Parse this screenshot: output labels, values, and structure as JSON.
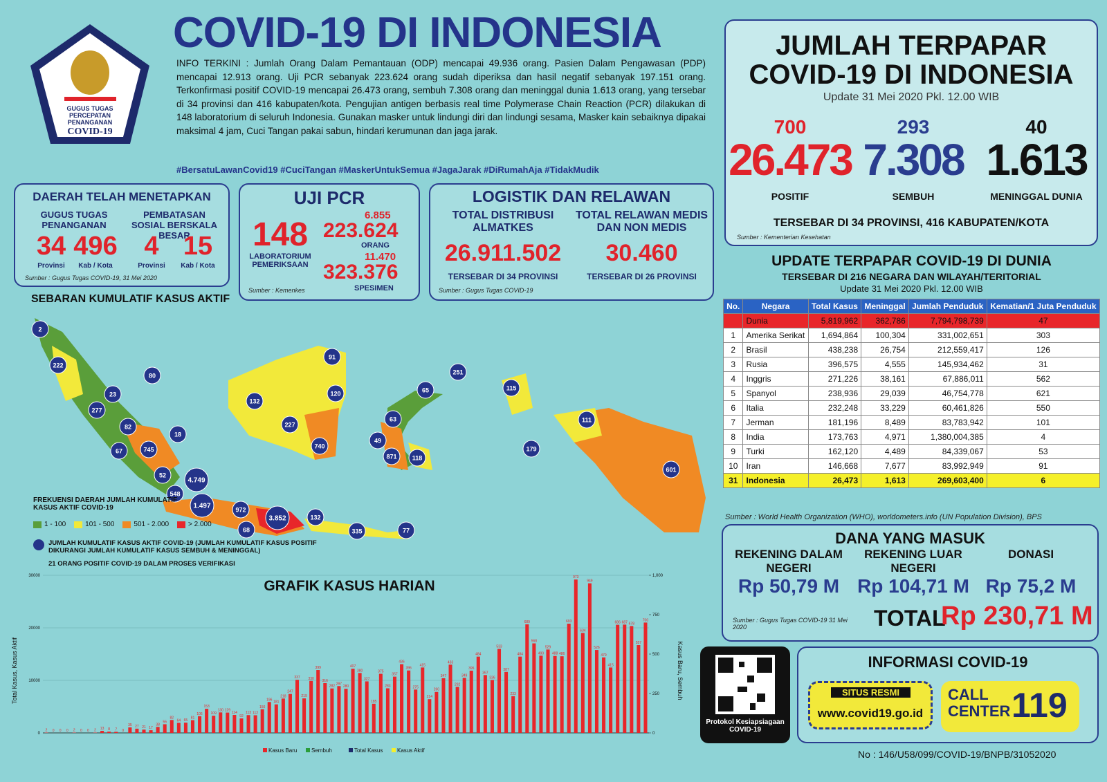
{
  "header": {
    "title": "COVID-19 DI INDONESIA",
    "logo_text": [
      "GUGUS TUGAS",
      "PERCEPATAN",
      "PENANGANAN",
      "COVID-19"
    ],
    "info": "INFO TERKINI : Jumlah Orang Dalam Pemantauan (ODP) mencapai 49.936 orang. Pasien Dalam Pengawasan (PDP) mencapai 12.913 orang. Uji PCR sebanyak 223.624 orang sudah diperiksa dan hasil negatif sebanyak 197.151 orang. Terkonfirmasi positif COVID-19 mencapai 26.473 orang, sembuh 7.308 orang dan meninggal dunia 1.613 orang, yang tersebar di 34 provinsi dan 416 kabupaten/kota. Pengujian antigen berbasis real time Polymerase Chain Reaction (PCR) dilakukan di 148 laboratorium di seluruh Indonesia. Gunakan masker untuk lindungi diri dan lindungi sesama, Masker kain sebaiknya dipakai maksimal 4 jam, Cuci Tangan pakai sabun, hindari kerumunan dan jaga jarak.",
    "hashtags": "#BersatuLawanCovid19 #CuciTangan #MaskerUntukSemua #JagaJarak #DiRumahAja #TidakMudik"
  },
  "daerah": {
    "title": "DAERAH TELAH MENETAPKAN",
    "group1": "GUGUS TUGAS PENANGANAN",
    "group2": "PEMBATASAN SOSIAL BERSKALA BESAR",
    "items": [
      {
        "value": "34",
        "label": "Provinsi"
      },
      {
        "value": "496",
        "label": "Kab / Kota"
      },
      {
        "value": "4",
        "label": "Provinsi"
      },
      {
        "value": "15",
        "label": "Kab / Kota"
      }
    ],
    "source": "Sumber : Gugus Tugas COVID-19, 31 Mei 2020"
  },
  "pcr": {
    "title": "UJI PCR",
    "labs": "148",
    "labs_label": "LABORATORIUM PEMERIKSAAN",
    "orang_increase": "6.855",
    "orang": "223.624",
    "orang_label": "ORANG",
    "spesimen_increase": "11.470",
    "spesimen": "323.376",
    "spesimen_label": "SPESIMEN",
    "source": "Sumber : Kemenkes"
  },
  "logistik": {
    "title": "LOGISTIK DAN RELAWAN",
    "dist_label": "TOTAL DISTRIBUSI ALMATKES",
    "dist_value": "26.911.502",
    "dist_note": "TERSEBAR DI 34 PROVINSI",
    "rel_label": "TOTAL RELAWAN MEDIS DAN NON MEDIS",
    "rel_value": "30.460",
    "rel_note": "TERSEBAR DI 26 PROVINSI",
    "source": "Sumber : Gugus Tugas COVID-19"
  },
  "indonesia": {
    "title1": "JUMLAH TERPAPAR",
    "title2": "COVID-19 DI INDONESIA",
    "update": "Update 31 Mei 2020 Pkl. 12.00 WIB",
    "stats": [
      {
        "increase": "700",
        "value": "26.473",
        "label": "POSITIF"
      },
      {
        "increase": "293",
        "value": "7.308",
        "label": "SEMBUH"
      },
      {
        "increase": "40",
        "value": "1.613",
        "label": "MENINGGAL DUNIA"
      }
    ],
    "spread": "TERSEBAR DI 34 PROVINSI, 416 KABUPATEN/KOTA",
    "source": "Sumber : Kementerian Kesehatan"
  },
  "world": {
    "title": "UPDATE TERPAPAR COVID-19 DI DUNIA",
    "subtitle": "TERSEBAR DI 216 NEGARA DAN WILAYAH/TERITORIAL",
    "update": "Update 31 Mei 2020 Pkl. 12.00 WIB",
    "table": {
      "header": [
        "No.",
        "Negara",
        "Total Kasus",
        "Meninggal",
        "Jumlah Penduduk",
        "Kematian/1 Juta Penduduk"
      ],
      "rows": [
        [
          "",
          "Dunia",
          "5,819,962",
          "362,786",
          "7,794,798,739",
          "47"
        ],
        [
          "1",
          "Amerika Serikat",
          "1,694,864",
          "100,304",
          "331,002,651",
          "303"
        ],
        [
          "2",
          "Brasil",
          "438,238",
          "26,754",
          "212,559,417",
          "126"
        ],
        [
          "3",
          "Rusia",
          "396,575",
          "4,555",
          "145,934,462",
          "31"
        ],
        [
          "4",
          "Inggris",
          "271,226",
          "38,161",
          "67,886,011",
          "562"
        ],
        [
          "5",
          "Spanyol",
          "238,936",
          "29,039",
          "46,754,778",
          "621"
        ],
        [
          "6",
          "Italia",
          "232,248",
          "33,229",
          "60,461,826",
          "550"
        ],
        [
          "7",
          "Jerman",
          "181,196",
          "8,489",
          "83,783,942",
          "101"
        ],
        [
          "8",
          "India",
          "173,763",
          "4,971",
          "1,380,004,385",
          "4"
        ],
        [
          "9",
          "Turki",
          "162,120",
          "4,489",
          "84,339,067",
          "53"
        ],
        [
          "10",
          "Iran",
          "146,668",
          "7,677",
          "83,992,949",
          "91"
        ],
        [
          "31",
          "Indonesia",
          "26,473",
          "1,613",
          "269,603,400",
          "6"
        ]
      ]
    },
    "source": "Sumber : World Health Organization (WHO), worldometers.info (UN Population Division), BPS"
  },
  "dana": {
    "title": "DANA YANG MASUK",
    "items": [
      {
        "label": "REKENING DALAM NEGERI",
        "value": "Rp 50,79 M"
      },
      {
        "label": "REKENING LUAR NEGERI",
        "value": "Rp 104,71 M"
      },
      {
        "label": "DONASI",
        "value": "Rp 75,2 M"
      }
    ],
    "source": "Sumber : Gugus Tugas COVID-19 31 Mei 2020",
    "total_label": "TOTAL",
    "total_value": "Rp 230,71 M"
  },
  "info": {
    "title": "INFORMASI COVID-19",
    "situs_label": "SITUS RESMI",
    "url": "www.covid19.go.id",
    "call_label": "CALL CENTER",
    "call_number": "119",
    "qr_caption": "Protokol Kesiapsiagaan COVID-19"
  },
  "map": {
    "title": "SEBARAN KUMULATIF KASUS AKTIF",
    "legend_title": "FREKUENSI DAERAH JUMLAH KUMULATIF KASUS AKTIF COVID-19",
    "legend": [
      {
        "label": "1 - 100",
        "color": "#5a9e3a"
      },
      {
        "label": "101 - 500",
        "color": "#f2e93a"
      },
      {
        "label": "501 - 2.000",
        "color": "#f08a24"
      },
      {
        "label": "> 2.000",
        "color": "#e8262a"
      }
    ],
    "bubble_note": "JUMLAH KUMULATIF KASUS AKTIF COVID-19 (JUMLAH KUMULATIF KASUS POSITIF DIKURANGI JUMLAH KUMULATIF KASUS SEMBUH & MENINGGAL)",
    "verification_note": "21 ORANG POSITIF COVID-19 DALAM PROSES VERIFIKASI",
    "bubbles": [
      "2",
      "222",
      "80",
      "23",
      "277",
      "82",
      "18",
      "67",
      "745",
      "52",
      "548",
      "4.749",
      "1.497",
      "972",
      "68",
      "3.852",
      "132",
      "335",
      "77",
      "132",
      "227",
      "740",
      "91",
      "120",
      "63",
      "49",
      "871",
      "118",
      "65",
      "251",
      "115",
      "179",
      "111",
      "601"
    ]
  },
  "chart_data": {
    "type": "bar",
    "title": "GRAFIK KASUS HARIAN",
    "ylabel": "Total Kasus, Kasus Aktif",
    "y2label": "Kasus Baru, Sembuh",
    "ylim": [
      0,
      30000
    ],
    "yticks": [
      0,
      10000,
      20000,
      30000
    ],
    "y2lim": [
      0,
      1000
    ],
    "y2ticks": [
      0,
      250,
      500,
      750,
      {
        "value": 1000,
        "label": "1,000"
      }
    ],
    "legend_names": [
      "Kasus Baru",
      "Sembuh",
      "Total Kasus",
      "Kasus Aktif"
    ],
    "legend_colors": [
      "#e8262a",
      "#2a9d3a",
      "#1d2a6b",
      "#f5f02a"
    ],
    "series": [
      {
        "name": "Kasus Baru",
        "color": "#e8262a",
        "axis": "y2",
        "values": [
          2,
          0,
          0,
          0,
          2,
          0,
          0,
          2,
          13,
          8,
          7,
          0,
          35,
          27,
          21,
          17,
          38,
          55,
          82,
          64,
          65,
          81,
          106,
          153,
          109,
          130,
          129,
          114,
          92,
          113,
          112,
          150,
          196,
          181,
          218,
          247,
          337,
          219,
          330,
          399,
          316,
          282,
          297,
          280,
          407,
          380,
          327,
          185,
          375,
          283,
          357,
          436,
          396,
          275,
          415,
          214,
          260,
          347,
          433,
          292,
          349,
          395,
          484,
          367,
          336,
          533,
          387,
          233,
          484,
          689,
          568,
          490,
          529,
          488,
          486,
          693,
          973,
          634,
          949,
          526,
          479,
          415,
          686,
          687,
          678,
          557,
          700
        ]
      }
    ]
  },
  "footer": "No : 146/U58/099/COVID-19/BNPB/31052020"
}
